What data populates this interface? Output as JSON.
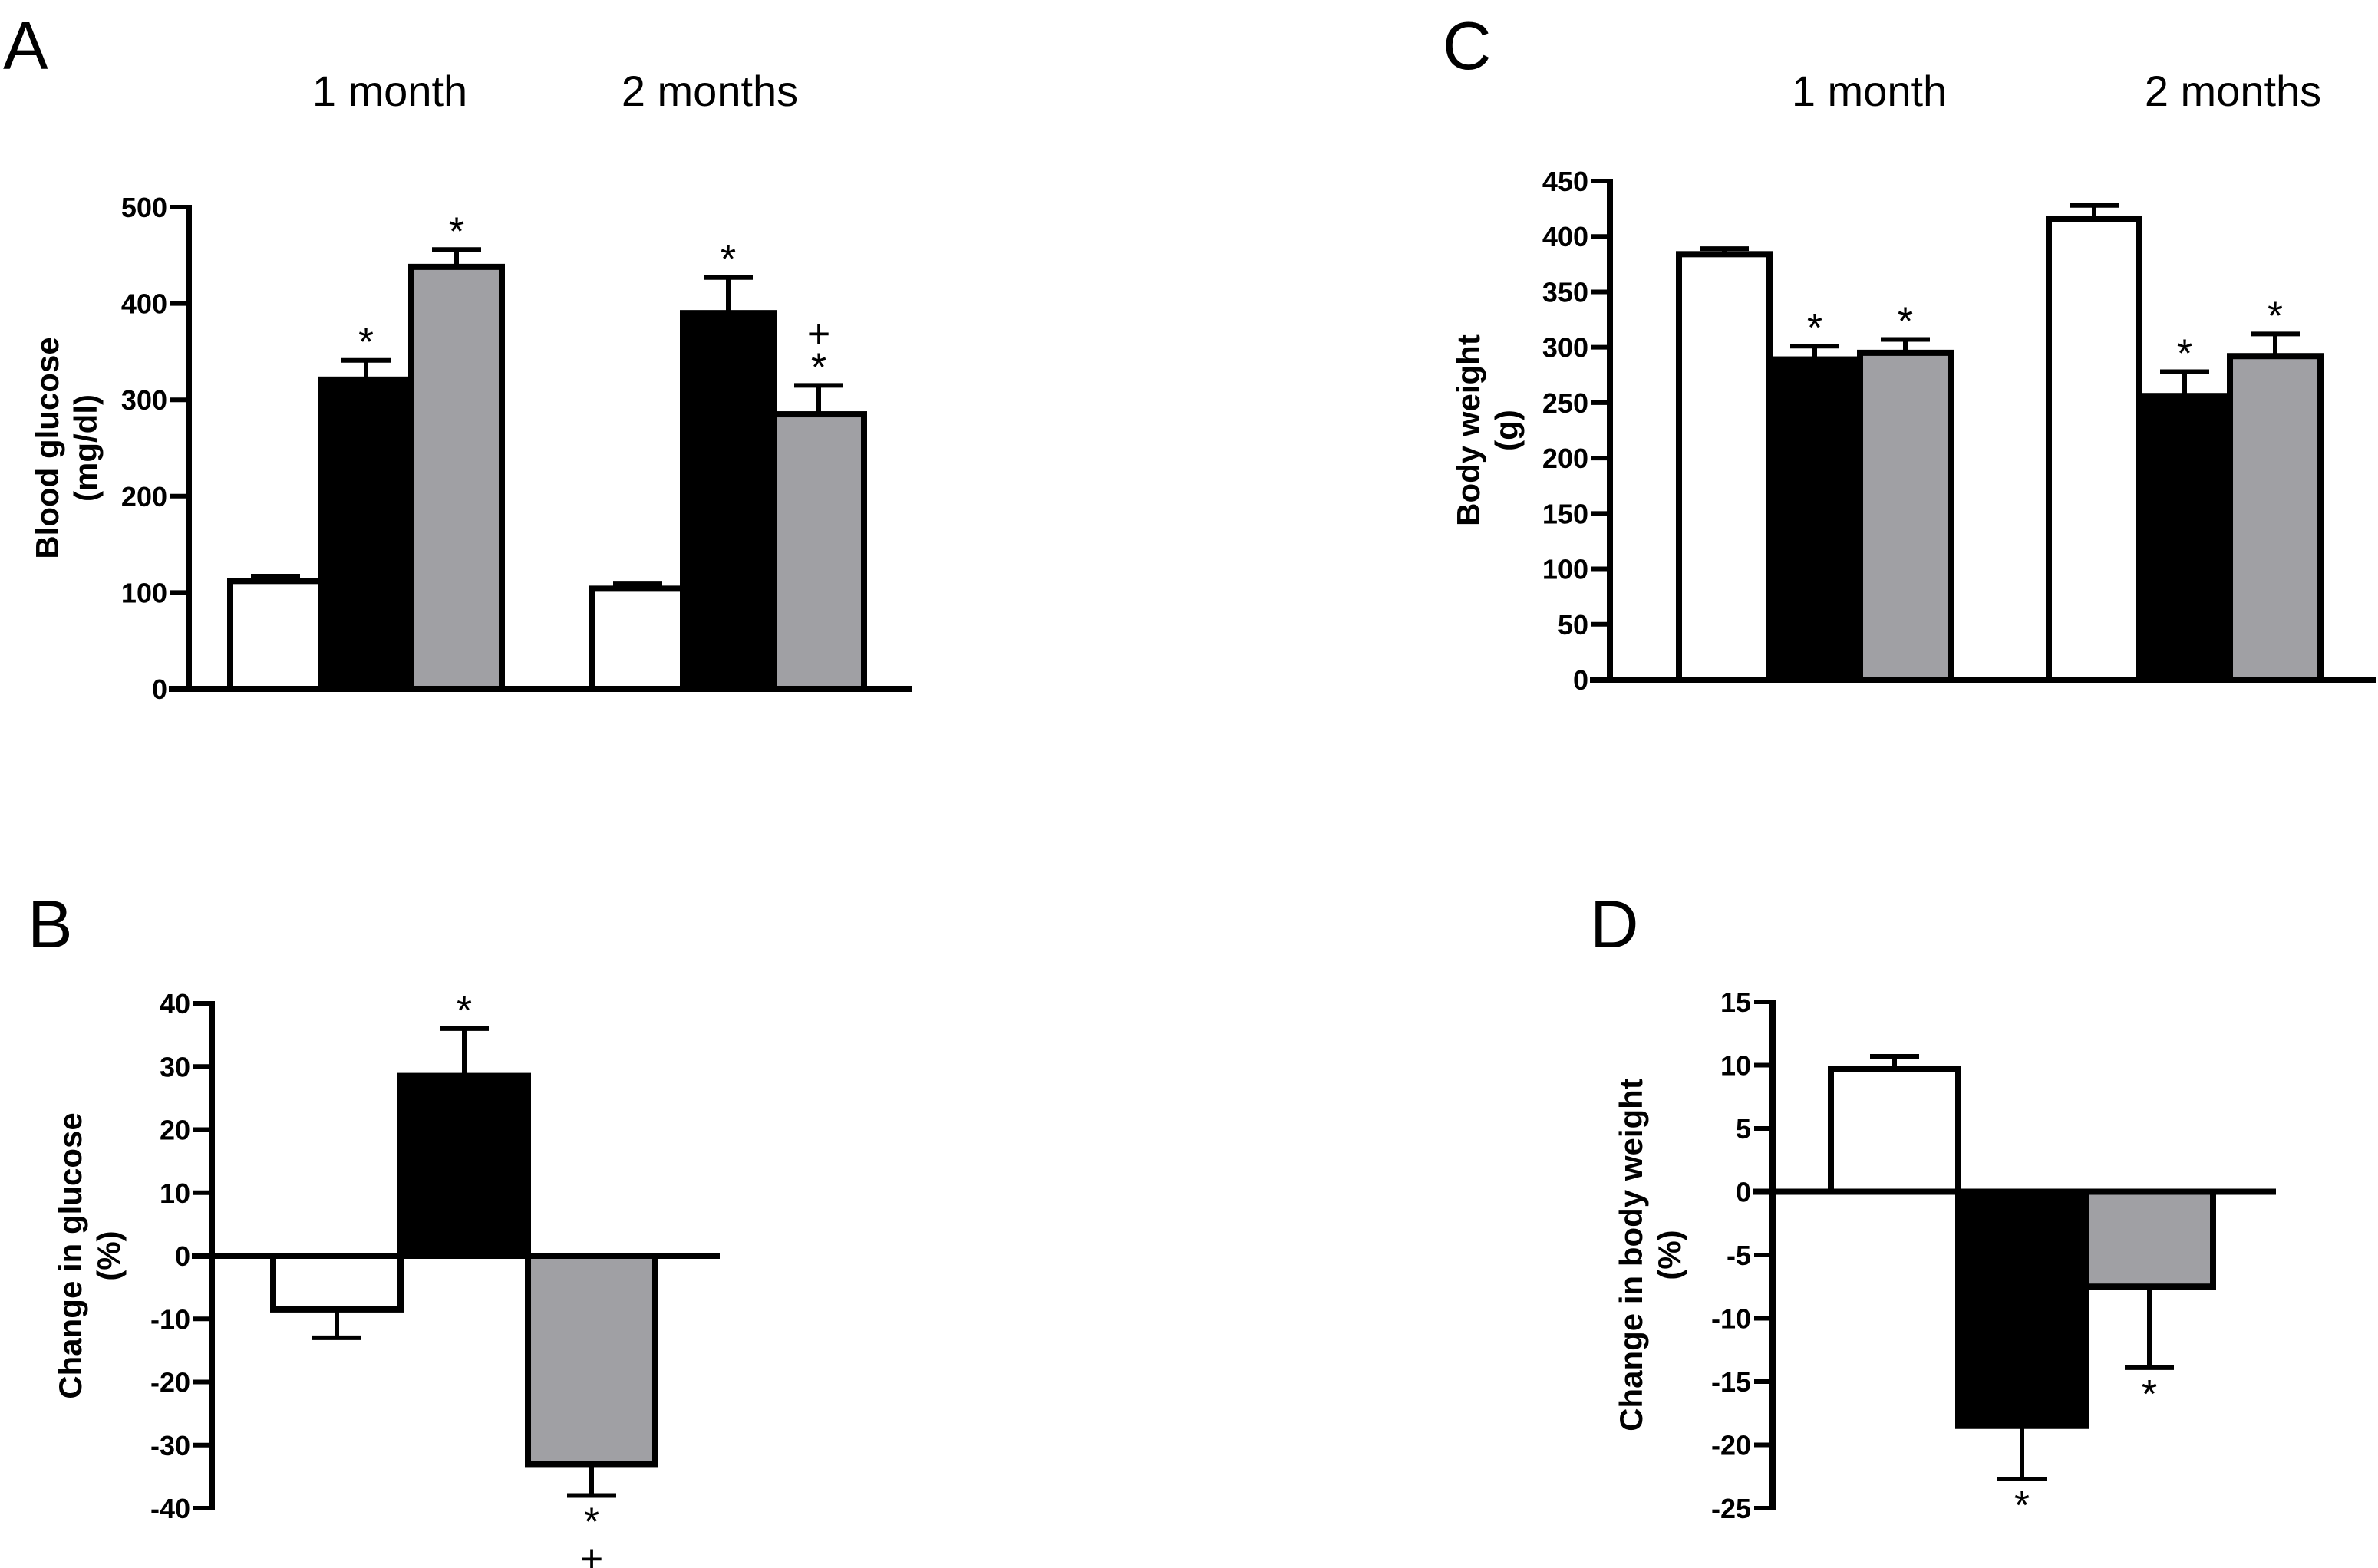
{
  "chart_data": [
    {
      "panel": "A",
      "type": "bar",
      "title": "",
      "group_labels": [
        "1 month",
        "2 months"
      ],
      "series_colors": [
        "#ffffff",
        "#000000",
        "#a0a0a4"
      ],
      "xlabel": "",
      "ylabel": [
        "Blood glucose",
        "(mg/dl)"
      ],
      "ylim": [
        0,
        500
      ],
      "yticks": [
        0,
        100,
        200,
        300,
        400,
        500
      ],
      "bars": [
        {
          "group": 0,
          "series": 0,
          "value": 112,
          "error": 5,
          "sig": ""
        },
        {
          "group": 0,
          "series": 1,
          "value": 321,
          "error": 20,
          "sig": "*"
        },
        {
          "group": 0,
          "series": 2,
          "value": 438,
          "error": 18,
          "sig": "*"
        },
        {
          "group": 1,
          "series": 0,
          "value": 104,
          "error": 5,
          "sig": ""
        },
        {
          "group": 1,
          "series": 1,
          "value": 390,
          "error": 37,
          "sig": "*"
        },
        {
          "group": 1,
          "series": 2,
          "value": 285,
          "error": 30,
          "sig": "*",
          "sig2": "+"
        }
      ]
    },
    {
      "panel": "B",
      "type": "bar",
      "title": "",
      "group_labels": [],
      "series_colors": [
        "#ffffff",
        "#000000",
        "#a0a0a4"
      ],
      "xlabel": "",
      "ylabel": [
        "Change in glucose",
        "(%)"
      ],
      "ylim": [
        -40,
        40
      ],
      "yticks": [
        -40,
        -30,
        -20,
        -10,
        0,
        10,
        20,
        30,
        40
      ],
      "bars": [
        {
          "group": 0,
          "series": 0,
          "value": -8.5,
          "error": 4.5,
          "sig": ""
        },
        {
          "group": 0,
          "series": 1,
          "value": 28.5,
          "error": 7.5,
          "sig": "*"
        },
        {
          "group": 0,
          "series": 2,
          "value": -33,
          "error": 5,
          "sig": "*",
          "sig2": "+"
        }
      ]
    },
    {
      "panel": "C",
      "type": "bar",
      "title": "",
      "group_labels": [
        "1 month",
        "2 months"
      ],
      "series_colors": [
        "#ffffff",
        "#000000",
        "#a0a0a4"
      ],
      "xlabel": "",
      "ylabel": [
        "Body weight",
        "(g)"
      ],
      "ylim": [
        0,
        450
      ],
      "yticks": [
        0,
        50,
        100,
        150,
        200,
        250,
        300,
        350,
        400,
        450
      ],
      "bars": [
        {
          "group": 0,
          "series": 0,
          "value": 384,
          "error": 5,
          "sig": ""
        },
        {
          "group": 0,
          "series": 1,
          "value": 289,
          "error": 12,
          "sig": "*"
        },
        {
          "group": 0,
          "series": 2,
          "value": 295,
          "error": 12,
          "sig": "*"
        },
        {
          "group": 1,
          "series": 0,
          "value": 416,
          "error": 12,
          "sig": ""
        },
        {
          "group": 1,
          "series": 1,
          "value": 256,
          "error": 22,
          "sig": "*"
        },
        {
          "group": 1,
          "series": 2,
          "value": 292,
          "error": 20,
          "sig": "*"
        }
      ]
    },
    {
      "panel": "D",
      "type": "bar",
      "title": "",
      "group_labels": [],
      "series_colors": [
        "#ffffff",
        "#000000",
        "#a0a0a4"
      ],
      "xlabel": "",
      "ylabel": [
        "Change in body weight",
        "(%)"
      ],
      "ylim": [
        -25,
        15
      ],
      "yticks": [
        -25,
        -20,
        -15,
        -10,
        -5,
        0,
        5,
        10,
        15
      ],
      "bars": [
        {
          "group": 0,
          "series": 0,
          "value": 9.7,
          "error": 1,
          "sig": ""
        },
        {
          "group": 0,
          "series": 1,
          "value": -18.5,
          "error": 4.2,
          "sig": "*"
        },
        {
          "group": 0,
          "series": 2,
          "value": -7.5,
          "error": 6.4,
          "sig": "*"
        }
      ]
    }
  ]
}
